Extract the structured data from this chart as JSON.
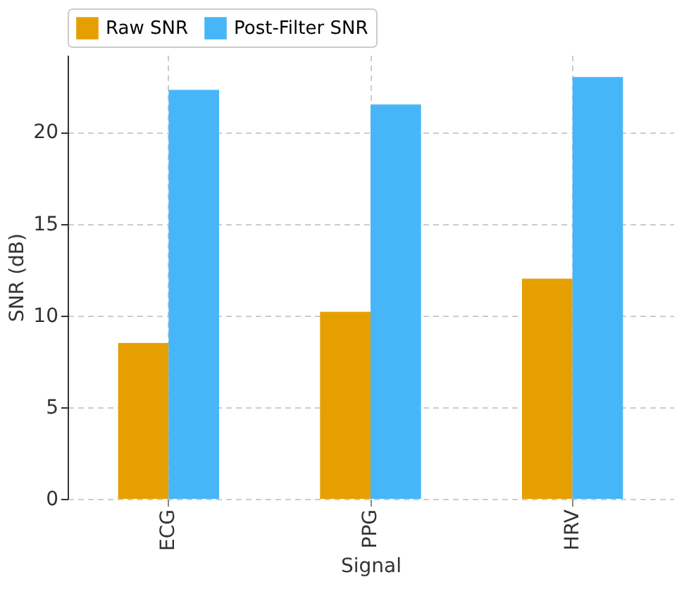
{
  "chart_data": {
    "type": "bar",
    "xlabel": "Signal",
    "ylabel": "SNR (dB)",
    "categories": [
      "ECG",
      "PPG",
      "HRV"
    ],
    "series": [
      {
        "name": "Raw SNR",
        "color": "#e69f00",
        "values": [
          8.5,
          10.2,
          12.0
        ]
      },
      {
        "name": "Post-Filter SNR",
        "color": "#47b6f9",
        "values": [
          22.3,
          21.5,
          23.0
        ]
      }
    ],
    "ylim": [
      0,
      24.2
    ],
    "yticks": [
      0,
      5,
      10,
      15,
      20
    ],
    "grid": true,
    "legend": "top"
  }
}
